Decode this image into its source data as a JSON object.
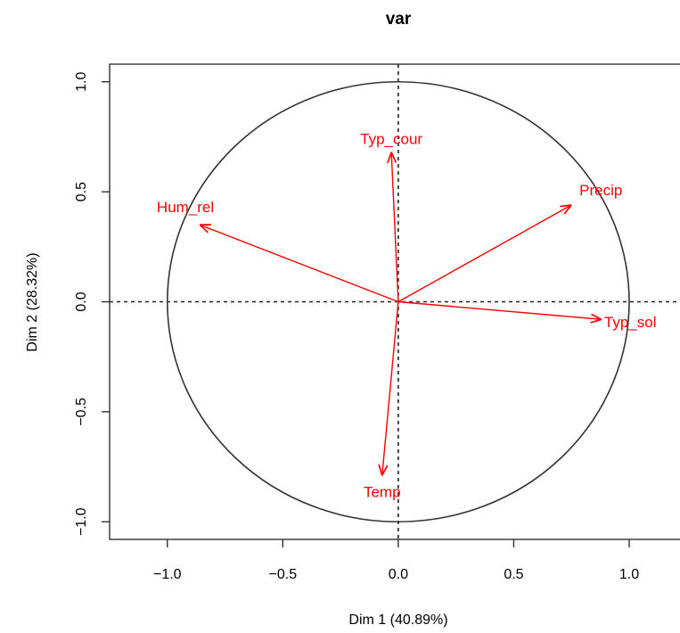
{
  "chart_data": {
    "type": "scatter",
    "title": "var",
    "xlabel": "Dim 1 (40.89%)",
    "ylabel": "Dim 2 (28.32%)",
    "xlim": [
      -1.25,
      1.22
    ],
    "ylim": [
      -1.08,
      1.08
    ],
    "x_ticks": [
      -1.0,
      -0.5,
      0.0,
      0.5,
      1.0
    ],
    "y_ticks": [
      -1.0,
      -0.5,
      0.0,
      0.5,
      1.0
    ],
    "x_tick_labels": [
      "−1.0",
      "−0.5",
      "0.0",
      "0.5",
      "1.0"
    ],
    "y_tick_labels": [
      "−1.0",
      "−0.5",
      "0.0",
      "0.5",
      "1.0"
    ],
    "grid": false,
    "unit_circle": true,
    "zero_lines": true,
    "arrow_color": "#ff0000",
    "variables": [
      {
        "label": "Typ_cour",
        "x": -0.03,
        "y": 0.68
      },
      {
        "label": "Precip",
        "x": 0.75,
        "y": 0.44
      },
      {
        "label": "Hum_rel",
        "x": -0.86,
        "y": 0.35
      },
      {
        "label": "Typ_sol",
        "x": 0.88,
        "y": -0.08
      },
      {
        "label": "Temp",
        "x": -0.07,
        "y": -0.79
      }
    ]
  }
}
